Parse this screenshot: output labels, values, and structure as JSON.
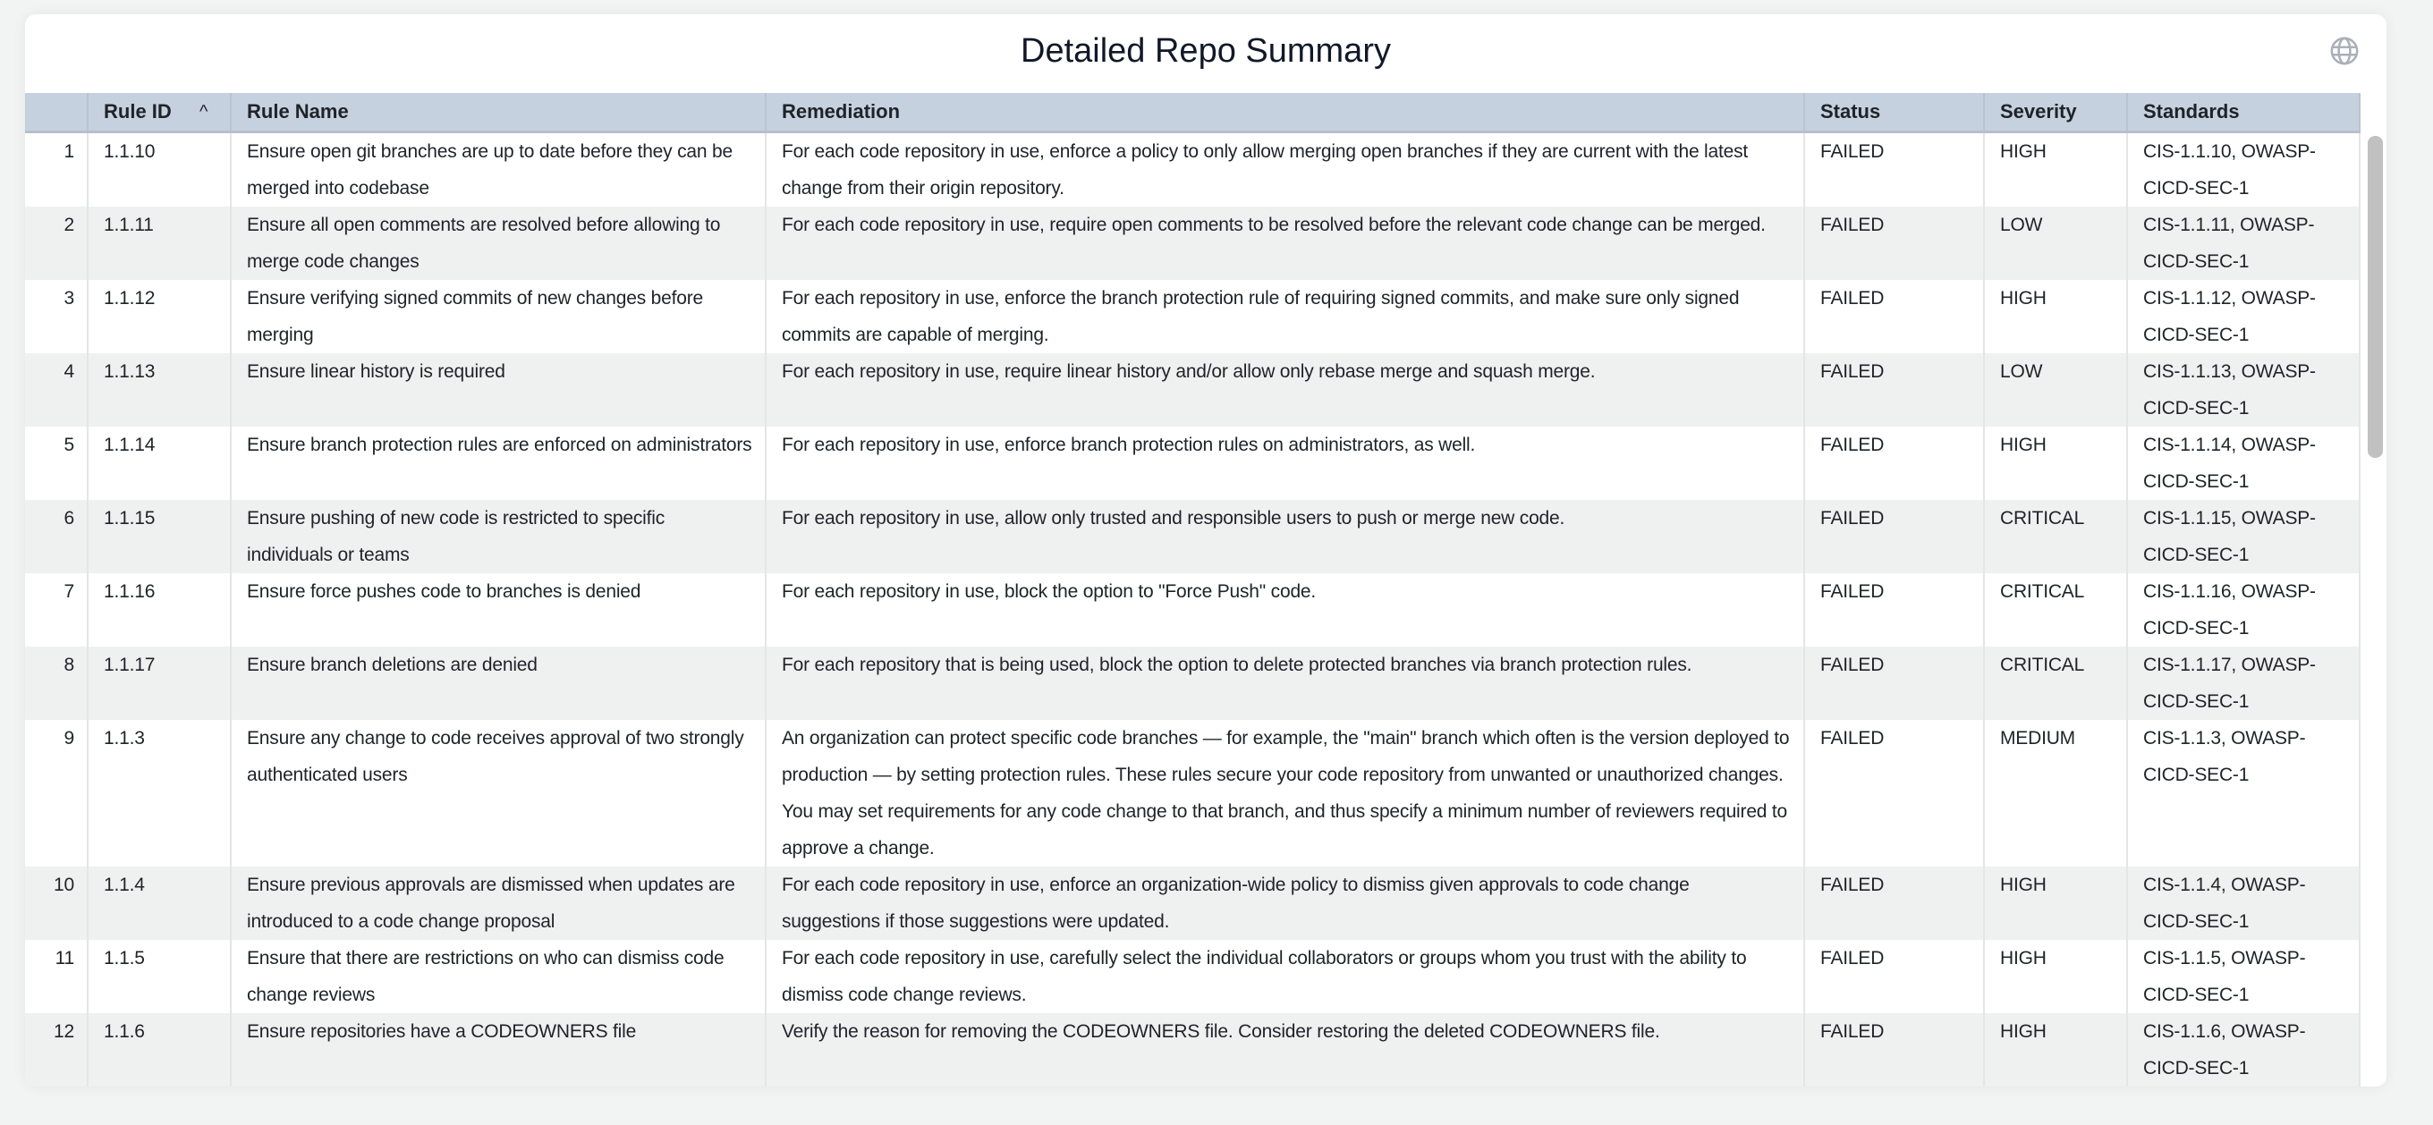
{
  "title": "Detailed Repo Summary",
  "icons": {
    "globe": "globe-icon",
    "sort": "chevron-up-icon"
  },
  "columns": [
    "",
    "Rule ID",
    "Rule Name",
    "Remediation",
    "Status",
    "Severity",
    "Standards"
  ],
  "sort_indicator": "^",
  "rows": [
    {
      "n": "1",
      "id": "1.1.10",
      "name": "Ensure open git branches are up to date before they can be merged into codebase",
      "remediation": "For each code repository in use, enforce a policy to only allow merging open branches if they are current with the latest change from their origin repository.",
      "status": "FAILED",
      "severity": "HIGH",
      "standards": "CIS-1.1.10, OWASP-CICD-SEC-1"
    },
    {
      "n": "2",
      "id": "1.1.11",
      "name": "Ensure all open comments are resolved before allowing to merge code changes",
      "remediation": "For each code repository in use, require open comments to be resolved before the relevant code change can be merged.",
      "status": "FAILED",
      "severity": "LOW",
      "standards": "CIS-1.1.11, OWASP-CICD-SEC-1"
    },
    {
      "n": "3",
      "id": "1.1.12",
      "name": "Ensure verifying signed commits of new changes before merging",
      "remediation": "For each repository in use, enforce the branch protection rule of requiring signed commits, and make sure only signed commits are capable of merging.",
      "status": "FAILED",
      "severity": "HIGH",
      "standards": "CIS-1.1.12, OWASP-CICD-SEC-1"
    },
    {
      "n": "4",
      "id": "1.1.13",
      "name": "Ensure linear history is required",
      "remediation": "For each repository in use, require linear history and/or allow only rebase merge and squash merge.",
      "status": "FAILED",
      "severity": "LOW",
      "standards": "CIS-1.1.13, OWASP-CICD-SEC-1"
    },
    {
      "n": "5",
      "id": "1.1.14",
      "name": "Ensure branch protection rules are enforced on administrators",
      "remediation": "For each repository in use, enforce branch protection rules on administrators, as well.",
      "status": "FAILED",
      "severity": "HIGH",
      "standards": "CIS-1.1.14, OWASP-CICD-SEC-1"
    },
    {
      "n": "6",
      "id": "1.1.15",
      "name": "Ensure pushing of new code is restricted to specific individuals or teams",
      "remediation": "For each repository in use, allow only trusted and responsible users to push or merge new code.",
      "status": "FAILED",
      "severity": "CRITICAL",
      "standards": "CIS-1.1.15, OWASP-CICD-SEC-1"
    },
    {
      "n": "7",
      "id": "1.1.16",
      "name": "Ensure force pushes code to branches is denied",
      "remediation": "For each repository in use, block the option to \"Force Push\" code.",
      "status": "FAILED",
      "severity": "CRITICAL",
      "standards": "CIS-1.1.16, OWASP-CICD-SEC-1"
    },
    {
      "n": "8",
      "id": "1.1.17",
      "name": "Ensure branch deletions are denied",
      "remediation": "For each repository that is being used, block the option to delete protected branches via branch protection rules.",
      "status": "FAILED",
      "severity": "CRITICAL",
      "standards": "CIS-1.1.17, OWASP-CICD-SEC-1"
    },
    {
      "n": "9",
      "id": "1.1.3",
      "name": "Ensure any change to code receives approval of two strongly authenticated users",
      "remediation": "An organization can protect specific code branches — for example, the \"main\" branch which often is the version deployed to production — by setting protection rules. These rules secure your code repository from unwanted or unauthorized changes. You may set requirements for any code change to that branch, and thus specify a minimum number of reviewers required to approve a change.",
      "status": "FAILED",
      "severity": "MEDIUM",
      "standards": "CIS-1.1.3, OWASP-CICD-SEC-1"
    },
    {
      "n": "10",
      "id": "1.1.4",
      "name": "Ensure previous approvals are dismissed when updates are introduced to a code change proposal",
      "remediation": "For each code repository in use, enforce an organization-wide policy to dismiss given approvals to code change suggestions if those suggestions were updated.",
      "status": "FAILED",
      "severity": "HIGH",
      "standards": "CIS-1.1.4, OWASP-CICD-SEC-1"
    },
    {
      "n": "11",
      "id": "1.1.5",
      "name": "Ensure that there are restrictions on who can dismiss code change reviews",
      "remediation": "For each code repository in use, carefully select the individual collaborators or groups whom you trust with the ability to dismiss code change reviews.",
      "status": "FAILED",
      "severity": "HIGH",
      "standards": "CIS-1.1.5, OWASP-CICD-SEC-1"
    },
    {
      "n": "12",
      "id": "1.1.6",
      "name": "Ensure repositories have a CODEOWNERS file",
      "remediation": "Verify the reason for removing the CODEOWNERS file. Consider restoring the deleted CODEOWNERS file.",
      "status": "FAILED",
      "severity": "HIGH",
      "standards": "CIS-1.1.6, OWASP-CICD-SEC-1"
    }
  ]
}
